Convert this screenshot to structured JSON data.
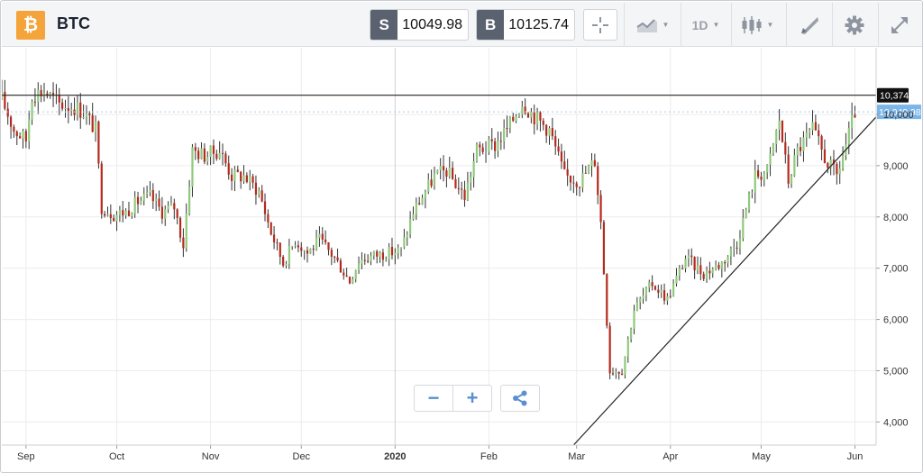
{
  "header": {
    "logo_glyph": "₿",
    "symbol": "BTC",
    "sell": {
      "tag": "S",
      "value": "10049.98"
    },
    "buy": {
      "tag": "B",
      "value": "10125.74"
    },
    "timeframe": "1D",
    "icons": {
      "crosshair": "crosshair-icon",
      "chart_type": "line-chart-icon",
      "candles": "candlestick-icon",
      "draw": "drawing-tools-icon",
      "settings": "gear-icon",
      "fullscreen": "expand-icon"
    }
  },
  "zoom": {
    "minus": "−",
    "plus": "+",
    "share_icon": "share-icon"
  },
  "chart_data": {
    "type": "candlestick",
    "x_ticks": [
      "Sep",
      "Oct",
      "Nov",
      "Dec",
      "2020",
      "Feb",
      "Mar",
      "Apr",
      "May",
      "Jun"
    ],
    "y_ticks": [
      "4,000",
      "5,000",
      "6,000",
      "7,000",
      "8,000",
      "9,000",
      "10,000"
    ],
    "y_tick_values": [
      4000,
      5000,
      6000,
      7000,
      8000,
      9000,
      10000
    ],
    "ylim": [
      3550,
      11300
    ],
    "x_range": [
      "2019-08-24",
      "2020-06-08"
    ],
    "last_price_label": "10,049.98",
    "last_price": 10049.98,
    "high_line_label": "10,374",
    "high_line": 10374,
    "trend_line": {
      "from": {
        "date": "2020-02-29",
        "price": 3550
      },
      "to": {
        "date": "2020-06-08",
        "price": 9950
      }
    },
    "up_color": "#8fc97a",
    "down_color": "#b52a1d",
    "price_path": [
      [
        "2019-08-24",
        10300
      ],
      [
        "2019-08-28",
        9700
      ],
      [
        "2019-09-01",
        9500
      ],
      [
        "2019-09-03",
        10400
      ],
      [
        "2019-09-07",
        10450
      ],
      [
        "2019-09-12",
        10200
      ],
      [
        "2019-09-17",
        10150
      ],
      [
        "2019-09-20",
        10050
      ],
      [
        "2019-09-24",
        9700
      ],
      [
        "2019-09-26",
        8200
      ],
      [
        "2019-09-30",
        8050
      ],
      [
        "2019-10-04",
        8100
      ],
      [
        "2019-10-08",
        8300
      ],
      [
        "2019-10-12",
        8400
      ],
      [
        "2019-10-16",
        8100
      ],
      [
        "2019-10-20",
        8200
      ],
      [
        "2019-10-23",
        7450
      ],
      [
        "2019-10-25",
        8700
      ],
      [
        "2019-10-26",
        9300
      ],
      [
        "2019-10-30",
        9200
      ],
      [
        "2019-11-04",
        9300
      ],
      [
        "2019-11-08",
        8800
      ],
      [
        "2019-11-12",
        8800
      ],
      [
        "2019-11-17",
        8500
      ],
      [
        "2019-11-21",
        7700
      ],
      [
        "2019-11-25",
        7100
      ],
      [
        "2019-11-29",
        7550
      ],
      [
        "2019-12-03",
        7300
      ],
      [
        "2019-12-07",
        7550
      ],
      [
        "2019-12-12",
        7200
      ],
      [
        "2019-12-17",
        6750
      ],
      [
        "2019-12-20",
        7150
      ],
      [
        "2019-12-25",
        7250
      ],
      [
        "2019-12-30",
        7300
      ],
      [
        "2020-01-03",
        7350
      ],
      [
        "2020-01-07",
        8100
      ],
      [
        "2020-01-14",
        8800
      ],
      [
        "2020-01-18",
        8900
      ],
      [
        "2020-01-24",
        8400
      ],
      [
        "2020-01-28",
        9300
      ],
      [
        "2020-02-03",
        9400
      ],
      [
        "2020-02-08",
        9800
      ],
      [
        "2020-02-12",
        10250
      ],
      [
        "2020-02-17",
        9900
      ],
      [
        "2020-02-21",
        9700
      ],
      [
        "2020-02-26",
        8800
      ],
      [
        "2020-03-02",
        8700
      ],
      [
        "2020-03-07",
        9100
      ],
      [
        "2020-03-09",
        7900
      ],
      [
        "2020-03-12",
        5000
      ],
      [
        "2020-03-16",
        5000
      ],
      [
        "2020-03-20",
        6200
      ],
      [
        "2020-03-26",
        6700
      ],
      [
        "2020-03-31",
        6400
      ],
      [
        "2020-04-06",
        7200
      ],
      [
        "2020-04-12",
        6900
      ],
      [
        "2020-04-18",
        7100
      ],
      [
        "2020-04-23",
        7500
      ],
      [
        "2020-04-29",
        8800
      ],
      [
        "2020-05-03",
        8900
      ],
      [
        "2020-05-07",
        9900
      ],
      [
        "2020-05-10",
        8700
      ],
      [
        "2020-05-13",
        9300
      ],
      [
        "2020-05-18",
        9700
      ],
      [
        "2020-05-22",
        9150
      ],
      [
        "2020-05-26",
        8800
      ],
      [
        "2020-05-30",
        9600
      ],
      [
        "2020-06-01",
        10050
      ]
    ]
  }
}
